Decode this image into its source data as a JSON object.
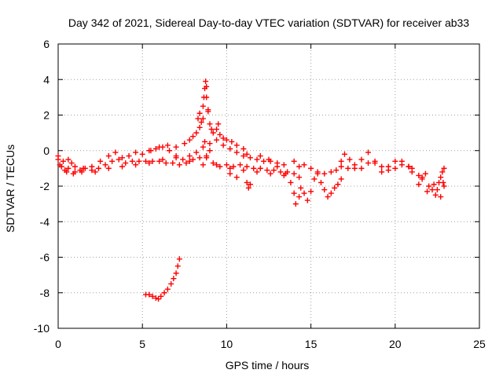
{
  "chart_data": {
    "type": "scatter",
    "title": "Day 342 of 2021, Sidereal Day-to-day VTEC variation (SDTVAR) for receiver ab33",
    "xlabel": "GPS time / hours",
    "ylabel": "SDTVAR / TECUs",
    "xlim": [
      0,
      25
    ],
    "ylim": [
      -10,
      6
    ],
    "xticks": [
      "0",
      "5",
      "10",
      "15",
      "20",
      "25"
    ],
    "yticks": [
      "-10",
      "-8",
      "-6",
      "-4",
      "-2",
      "0",
      "2",
      "4",
      "6"
    ],
    "grid": true,
    "marker": "+",
    "series": [
      {
        "name": "SDTVAR",
        "color": "#ff0000",
        "points": [
          [
            0.0,
            -0.5
          ],
          [
            0.2,
            -0.9
          ],
          [
            0.4,
            -1.1
          ],
          [
            0.6,
            -1.0
          ],
          [
            0.8,
            -0.7
          ],
          [
            1.0,
            -1.2
          ],
          [
            1.3,
            -1.1
          ],
          [
            1.6,
            -1.0
          ],
          [
            2.0,
            -1.1
          ],
          [
            2.4,
            -1.0
          ],
          [
            2.8,
            -0.8
          ],
          [
            3.2,
            -0.6
          ],
          [
            3.6,
            -0.5
          ],
          [
            4.0,
            -0.7
          ],
          [
            4.4,
            -0.6
          ],
          [
            4.8,
            -0.6
          ],
          [
            5.2,
            -0.6
          ],
          [
            5.6,
            -0.6
          ],
          [
            6.0,
            -0.6
          ],
          [
            6.4,
            -0.7
          ],
          [
            6.8,
            -0.7
          ],
          [
            7.2,
            -0.8
          ],
          [
            7.6,
            -0.7
          ],
          [
            8.0,
            -0.5
          ],
          [
            8.4,
            -0.4
          ],
          [
            8.8,
            -0.4
          ],
          [
            9.2,
            -0.7
          ],
          [
            9.6,
            -0.9
          ],
          [
            10.0,
            -0.8
          ],
          [
            10.4,
            -0.9
          ],
          [
            10.8,
            -0.8
          ],
          [
            11.2,
            -0.9
          ],
          [
            11.6,
            -1.0
          ],
          [
            12.0,
            -1.0
          ],
          [
            12.4,
            -1.1
          ],
          [
            12.8,
            -1.1
          ],
          [
            13.2,
            -1.2
          ],
          [
            13.6,
            -1.2
          ],
          [
            14.0,
            -1.3
          ],
          [
            14.3,
            -1.5
          ],
          [
            0.0,
            -0.3
          ],
          [
            0.3,
            -0.6
          ],
          [
            0.6,
            -0.5
          ],
          [
            1.0,
            -0.9
          ],
          [
            1.5,
            -1.0
          ],
          [
            2.0,
            -0.9
          ],
          [
            2.5,
            -0.6
          ],
          [
            3.0,
            -0.3
          ],
          [
            3.4,
            -0.1
          ],
          [
            3.8,
            -0.4
          ],
          [
            4.2,
            -0.3
          ],
          [
            4.6,
            -0.1
          ],
          [
            5.0,
            -0.2
          ],
          [
            5.4,
            0.0
          ],
          [
            5.8,
            0.1
          ],
          [
            6.2,
            0.2
          ],
          [
            6.6,
            0.0
          ],
          [
            7.0,
            -0.3
          ],
          [
            7.4,
            -0.5
          ],
          [
            7.8,
            -0.3
          ],
          [
            8.2,
            -0.1
          ],
          [
            8.6,
            0.2
          ],
          [
            9.0,
            0.4
          ],
          [
            9.4,
            0.6
          ],
          [
            9.8,
            0.3
          ],
          [
            10.2,
            0.1
          ],
          [
            10.6,
            -0.1
          ],
          [
            11.0,
            -0.3
          ],
          [
            11.4,
            -0.4
          ],
          [
            11.8,
            -0.5
          ],
          [
            12.2,
            -0.6
          ],
          [
            12.6,
            -0.6
          ],
          [
            13.0,
            -0.7
          ],
          [
            13.4,
            -0.8
          ],
          [
            0.1,
            -0.8
          ],
          [
            0.5,
            -1.2
          ],
          [
            0.9,
            -1.3
          ],
          [
            1.4,
            -1.2
          ],
          [
            2.2,
            -1.2
          ],
          [
            3.0,
            -1.0
          ],
          [
            3.8,
            -0.9
          ],
          [
            4.6,
            -0.8
          ],
          [
            5.4,
            -0.7
          ],
          [
            6.2,
            -0.5
          ],
          [
            7.0,
            -0.4
          ],
          [
            7.8,
            -0.6
          ],
          [
            8.6,
            -0.8
          ],
          [
            9.4,
            -0.8
          ],
          [
            10.2,
            -1.0
          ],
          [
            11.0,
            -1.1
          ],
          [
            11.8,
            -1.2
          ],
          [
            12.6,
            -1.3
          ],
          [
            13.4,
            -1.4
          ],
          [
            5.5,
            0.0
          ],
          [
            6.0,
            0.2
          ],
          [
            6.5,
            0.3
          ],
          [
            7.0,
            0.2
          ],
          [
            7.5,
            0.4
          ],
          [
            7.8,
            0.6
          ],
          [
            8.0,
            0.8
          ],
          [
            8.2,
            1.0
          ],
          [
            8.4,
            1.3
          ],
          [
            8.5,
            1.6
          ],
          [
            8.6,
            1.8
          ],
          [
            8.6,
            2.5
          ],
          [
            8.65,
            3.0
          ],
          [
            8.7,
            3.5
          ],
          [
            8.75,
            3.9
          ],
          [
            8.8,
            3.6
          ],
          [
            8.8,
            3.0
          ],
          [
            8.9,
            2.2
          ],
          [
            9.0,
            1.5
          ],
          [
            9.1,
            1.2
          ],
          [
            9.2,
            1.0
          ],
          [
            9.4,
            1.2
          ],
          [
            9.6,
            0.9
          ],
          [
            9.8,
            0.7
          ],
          [
            10.0,
            0.6
          ],
          [
            10.3,
            0.5
          ],
          [
            10.6,
            0.3
          ],
          [
            11.0,
            0.1
          ],
          [
            11.2,
            -0.2
          ],
          [
            8.3,
            1.8
          ],
          [
            8.4,
            2.1
          ],
          [
            8.9,
            2.3
          ],
          [
            9.5,
            1.5
          ],
          [
            8.7,
            0.5
          ],
          [
            8.8,
            -0.3
          ],
          [
            9.0,
            0.0
          ],
          [
            10.2,
            -1.3
          ],
          [
            10.6,
            -1.5
          ],
          [
            11.2,
            -1.8
          ],
          [
            11.3,
            -2.1
          ],
          [
            11.4,
            -1.9
          ],
          [
            12.0,
            -0.3
          ],
          [
            12.5,
            -0.5
          ],
          [
            13.0,
            -0.9
          ],
          [
            13.5,
            -1.3
          ],
          [
            13.8,
            -1.8
          ],
          [
            14.0,
            -2.4
          ],
          [
            14.1,
            -3.0
          ],
          [
            14.3,
            -2.6
          ],
          [
            14.4,
            -2.1
          ],
          [
            14.6,
            -2.4
          ],
          [
            14.8,
            -2.8
          ],
          [
            15.0,
            -2.3
          ],
          [
            15.2,
            -1.6
          ],
          [
            15.4,
            -1.3
          ],
          [
            15.6,
            -1.8
          ],
          [
            15.8,
            -2.2
          ],
          [
            16.0,
            -2.6
          ],
          [
            16.2,
            -2.4
          ],
          [
            16.4,
            -2.1
          ],
          [
            16.6,
            -1.9
          ],
          [
            16.8,
            -1.6
          ],
          [
            14.0,
            -0.6
          ],
          [
            14.3,
            -0.9
          ],
          [
            14.6,
            -0.8
          ],
          [
            15.0,
            -1.0
          ],
          [
            15.4,
            -1.2
          ],
          [
            15.8,
            -1.3
          ],
          [
            16.2,
            -1.2
          ],
          [
            16.5,
            -1.1
          ],
          [
            16.8,
            -0.6
          ],
          [
            17.0,
            -0.2
          ],
          [
            17.3,
            -0.5
          ],
          [
            17.6,
            -0.8
          ],
          [
            18.0,
            -1.0
          ],
          [
            18.4,
            -0.7
          ],
          [
            18.8,
            -0.6
          ],
          [
            19.2,
            -0.9
          ],
          [
            19.6,
            -1.1
          ],
          [
            20.0,
            -1.0
          ],
          [
            20.4,
            -0.8
          ],
          [
            20.8,
            -0.9
          ],
          [
            21.0,
            -1.2
          ],
          [
            21.4,
            -1.4
          ],
          [
            21.6,
            -1.6
          ],
          [
            16.8,
            -0.9
          ],
          [
            17.2,
            -1.0
          ],
          [
            17.6,
            -1.0
          ],
          [
            18.0,
            -0.5
          ],
          [
            18.4,
            -0.1
          ],
          [
            18.8,
            -0.7
          ],
          [
            19.2,
            -1.2
          ],
          [
            19.6,
            -0.9
          ],
          [
            20.0,
            -0.6
          ],
          [
            20.4,
            -0.6
          ],
          [
            20.8,
            -0.9
          ],
          [
            21.0,
            -1.0
          ],
          [
            21.4,
            -1.9
          ],
          [
            21.6,
            -1.5
          ],
          [
            21.8,
            -1.3
          ],
          [
            22.0,
            -2.0
          ],
          [
            22.2,
            -2.2
          ],
          [
            22.4,
            -2.5
          ],
          [
            22.5,
            -2.2
          ],
          [
            22.6,
            -1.8
          ],
          [
            22.7,
            -1.5
          ],
          [
            22.8,
            -1.2
          ],
          [
            22.85,
            -1.8
          ],
          [
            22.9,
            -2.0
          ],
          [
            22.9,
            -1.0
          ],
          [
            22.7,
            -2.6
          ],
          [
            22.3,
            -1.9
          ],
          [
            21.9,
            -2.3
          ],
          [
            5.2,
            -8.1
          ],
          [
            5.4,
            -8.1
          ],
          [
            5.6,
            -8.2
          ],
          [
            5.8,
            -8.3
          ],
          [
            5.95,
            -8.35
          ],
          [
            6.1,
            -8.2
          ],
          [
            6.3,
            -8.0
          ],
          [
            6.5,
            -7.8
          ],
          [
            6.7,
            -7.5
          ],
          [
            6.85,
            -7.2
          ],
          [
            7.0,
            -6.9
          ],
          [
            7.1,
            -6.5
          ],
          [
            7.2,
            -6.1
          ]
        ]
      }
    ]
  }
}
